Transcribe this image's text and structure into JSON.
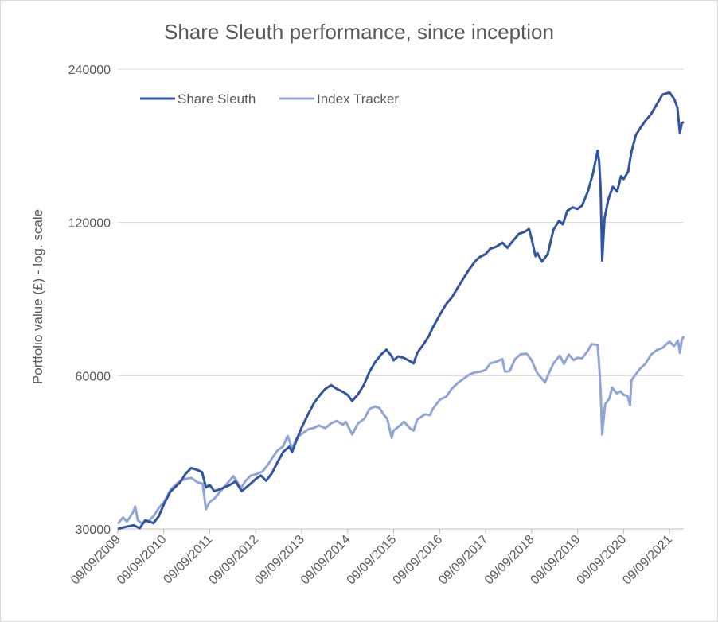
{
  "chart_data": {
    "type": "line",
    "title": "Share Sleuth performance, since inception",
    "ylabel": "Portfolio value (£) - log. scale",
    "xlabel": "",
    "y_scale": "log",
    "ylim": [
      30000,
      240000
    ],
    "y_ticks": [
      30000,
      60000,
      120000,
      240000
    ],
    "y_tick_labels": [
      "30000",
      "60000",
      "120000",
      "240000"
    ],
    "x_range": [
      "2009-09-09",
      "2021-12-31"
    ],
    "x_ticks": [
      "2009-09-09",
      "2010-09-09",
      "2011-09-09",
      "2012-09-09",
      "2013-09-09",
      "2014-09-09",
      "2015-09-09",
      "2016-09-09",
      "2017-09-09",
      "2018-09-09",
      "2019-09-09",
      "2020-09-09",
      "2021-09-09"
    ],
    "x_tick_labels": [
      "09/09/2009",
      "09/09/2010",
      "09/09/2011",
      "09/09/2012",
      "09/09/2013",
      "09/09/2014",
      "09/09/2015",
      "09/09/2016",
      "09/09/2017",
      "09/09/2018",
      "09/09/2019",
      "09/09/2020",
      "09/09/2021"
    ],
    "grid": true,
    "legend_position": "top-left",
    "series": [
      {
        "name": "Share Sleuth",
        "color": "#2f55a4",
        "points": [
          [
            "2009-09-09",
            30000
          ],
          [
            "2009-11-15",
            30300
          ],
          [
            "2010-01-15",
            30500
          ],
          [
            "2010-03-01",
            30100
          ],
          [
            "2010-04-15",
            31200
          ],
          [
            "2010-06-20",
            30800
          ],
          [
            "2010-08-01",
            31800
          ],
          [
            "2010-09-09",
            33500
          ],
          [
            "2010-11-01",
            35500
          ],
          [
            "2011-01-15",
            37000
          ],
          [
            "2011-03-01",
            38500
          ],
          [
            "2011-04-15",
            39500
          ],
          [
            "2011-06-01",
            39200
          ],
          [
            "2011-07-10",
            38800
          ],
          [
            "2011-08-10",
            36200
          ],
          [
            "2011-09-09",
            36600
          ],
          [
            "2011-10-15",
            35600
          ],
          [
            "2011-12-01",
            35900
          ],
          [
            "2012-02-15",
            36600
          ],
          [
            "2012-04-01",
            37200
          ],
          [
            "2012-05-20",
            35600
          ],
          [
            "2012-07-01",
            36300
          ],
          [
            "2012-09-09",
            37600
          ],
          [
            "2012-10-20",
            38200
          ],
          [
            "2012-12-01",
            37300
          ],
          [
            "2013-01-15",
            38600
          ],
          [
            "2013-03-01",
            40600
          ],
          [
            "2013-04-15",
            42500
          ],
          [
            "2013-06-01",
            43500
          ],
          [
            "2013-06-25",
            42500
          ],
          [
            "2013-08-01",
            45000
          ],
          [
            "2013-09-09",
            47500
          ],
          [
            "2013-11-01",
            50500
          ],
          [
            "2013-12-15",
            53000
          ],
          [
            "2014-02-01",
            55000
          ],
          [
            "2014-03-15",
            56500
          ],
          [
            "2014-05-01",
            57500
          ],
          [
            "2014-06-15",
            56500
          ],
          [
            "2014-08-01",
            55800
          ],
          [
            "2014-09-09",
            55000
          ],
          [
            "2014-10-15",
            53500
          ],
          [
            "2014-12-01",
            55200
          ],
          [
            "2015-01-15",
            57500
          ],
          [
            "2015-03-01",
            61000
          ],
          [
            "2015-04-15",
            63800
          ],
          [
            "2015-06-01",
            66000
          ],
          [
            "2015-07-15",
            67500
          ],
          [
            "2015-08-25",
            65500
          ],
          [
            "2015-09-09",
            64300
          ],
          [
            "2015-10-15",
            65500
          ],
          [
            "2015-12-01",
            65000
          ],
          [
            "2016-01-20",
            64000
          ],
          [
            "2016-02-15",
            63400
          ],
          [
            "2016-03-15",
            66500
          ],
          [
            "2016-05-01",
            69000
          ],
          [
            "2016-06-15",
            71800
          ],
          [
            "2016-07-15",
            74500
          ],
          [
            "2016-09-09",
            79000
          ],
          [
            "2016-11-01",
            83000
          ],
          [
            "2016-12-15",
            85500
          ],
          [
            "2017-02-01",
            89500
          ],
          [
            "2017-03-15",
            93000
          ],
          [
            "2017-05-01",
            97000
          ],
          [
            "2017-06-15",
            100500
          ],
          [
            "2017-07-20",
            102500
          ],
          [
            "2017-09-09",
            104000
          ],
          [
            "2017-10-15",
            106500
          ],
          [
            "2017-12-01",
            107500
          ],
          [
            "2018-01-20",
            109500
          ],
          [
            "2018-03-01",
            107000
          ],
          [
            "2018-04-15",
            110500
          ],
          [
            "2018-06-01",
            114000
          ],
          [
            "2018-07-15",
            115000
          ],
          [
            "2018-08-20",
            116500
          ],
          [
            "2018-09-09",
            111500
          ],
          [
            "2018-10-10",
            103000
          ],
          [
            "2018-10-25",
            104500
          ],
          [
            "2018-12-01",
            100500
          ],
          [
            "2019-01-15",
            104000
          ],
          [
            "2019-03-01",
            116000
          ],
          [
            "2019-04-15",
            121000
          ],
          [
            "2019-05-15",
            119000
          ],
          [
            "2019-06-20",
            126500
          ],
          [
            "2019-08-01",
            128500
          ],
          [
            "2019-09-09",
            127500
          ],
          [
            "2019-10-15",
            129500
          ],
          [
            "2019-11-30",
            138000
          ],
          [
            "2020-01-10",
            150000
          ],
          [
            "2020-02-15",
            166000
          ],
          [
            "2020-02-28",
            158000
          ],
          [
            "2020-03-10",
            140000
          ],
          [
            "2020-03-23",
            101000
          ],
          [
            "2020-04-10",
            122000
          ],
          [
            "2020-05-10",
            133000
          ],
          [
            "2020-06-15",
            141000
          ],
          [
            "2020-07-20",
            138000
          ],
          [
            "2020-08-20",
            148000
          ],
          [
            "2020-09-09",
            146000
          ],
          [
            "2020-10-15",
            151000
          ],
          [
            "2020-11-10",
            165000
          ],
          [
            "2020-12-15",
            178000
          ],
          [
            "2021-01-20",
            184000
          ],
          [
            "2021-03-01",
            190000
          ],
          [
            "2021-04-15",
            196000
          ],
          [
            "2021-06-01",
            205000
          ],
          [
            "2021-07-15",
            214000
          ],
          [
            "2021-09-09",
            216000
          ],
          [
            "2021-10-15",
            210000
          ],
          [
            "2021-11-10",
            202000
          ],
          [
            "2021-11-30",
            180000
          ],
          [
            "2021-12-15",
            188000
          ],
          [
            "2021-12-31",
            189000
          ]
        ]
      },
      {
        "name": "Index Tracker",
        "color": "#8fa4d9",
        "points": [
          [
            "2009-09-09",
            30700
          ],
          [
            "2009-10-20",
            31600
          ],
          [
            "2009-11-20",
            31000
          ],
          [
            "2010-01-10",
            32400
          ],
          [
            "2010-01-25",
            33200
          ],
          [
            "2010-02-15",
            31200
          ],
          [
            "2010-03-15",
            30800
          ],
          [
            "2010-05-15",
            31100
          ],
          [
            "2010-06-25",
            31900
          ],
          [
            "2010-08-01",
            33000
          ],
          [
            "2010-09-09",
            33800
          ],
          [
            "2010-11-01",
            35800
          ],
          [
            "2010-12-15",
            36700
          ],
          [
            "2011-01-20",
            37300
          ],
          [
            "2011-03-01",
            37600
          ],
          [
            "2011-04-15",
            37800
          ],
          [
            "2011-06-01",
            37100
          ],
          [
            "2011-07-15",
            36800
          ],
          [
            "2011-08-10",
            32800
          ],
          [
            "2011-09-09",
            33900
          ],
          [
            "2011-10-15",
            34400
          ],
          [
            "2011-12-01",
            35500
          ],
          [
            "2012-01-20",
            36700
          ],
          [
            "2012-03-15",
            38100
          ],
          [
            "2012-05-15",
            36100
          ],
          [
            "2012-06-20",
            37300
          ],
          [
            "2012-08-01",
            38200
          ],
          [
            "2012-09-09",
            38400
          ],
          [
            "2012-11-01",
            38900
          ],
          [
            "2012-12-15",
            40100
          ],
          [
            "2013-01-25",
            41600
          ],
          [
            "2013-03-01",
            42800
          ],
          [
            "2013-04-15",
            43600
          ],
          [
            "2013-05-20",
            45700
          ],
          [
            "2013-06-25",
            43200
          ],
          [
            "2013-08-01",
            45300
          ],
          [
            "2013-09-09",
            46100
          ],
          [
            "2013-11-01",
            47100
          ],
          [
            "2013-12-15",
            47400
          ],
          [
            "2014-01-25",
            47900
          ],
          [
            "2014-03-15",
            47300
          ],
          [
            "2014-05-01",
            48400
          ],
          [
            "2014-06-15",
            48900
          ],
          [
            "2014-08-01",
            48100
          ],
          [
            "2014-08-25",
            48700
          ],
          [
            "2014-09-09",
            47900
          ],
          [
            "2014-10-15",
            46000
          ],
          [
            "2014-12-01",
            48400
          ],
          [
            "2015-01-20",
            49400
          ],
          [
            "2015-03-01",
            51600
          ],
          [
            "2015-04-15",
            52200
          ],
          [
            "2015-05-20",
            51800
          ],
          [
            "2015-06-25",
            50200
          ],
          [
            "2015-07-20",
            49400
          ],
          [
            "2015-08-25",
            45300
          ],
          [
            "2015-09-09",
            46800
          ],
          [
            "2015-10-15",
            47600
          ],
          [
            "2015-12-01",
            48700
          ],
          [
            "2016-01-20",
            47200
          ],
          [
            "2016-02-15",
            46800
          ],
          [
            "2016-03-15",
            49200
          ],
          [
            "2016-05-15",
            50400
          ],
          [
            "2016-06-24",
            50200
          ],
          [
            "2016-07-15",
            51600
          ],
          [
            "2016-09-09",
            53800
          ],
          [
            "2016-11-01",
            54600
          ],
          [
            "2016-12-15",
            56600
          ],
          [
            "2017-02-01",
            58100
          ],
          [
            "2017-03-15",
            59100
          ],
          [
            "2017-05-01",
            60300
          ],
          [
            "2017-06-15",
            60900
          ],
          [
            "2017-08-01",
            61100
          ],
          [
            "2017-09-09",
            61600
          ],
          [
            "2017-10-15",
            63400
          ],
          [
            "2017-12-01",
            63900
          ],
          [
            "2018-01-20",
            64700
          ],
          [
            "2018-02-10",
            61100
          ],
          [
            "2018-03-20",
            61300
          ],
          [
            "2018-05-01",
            64700
          ],
          [
            "2018-06-15",
            66100
          ],
          [
            "2018-08-01",
            66300
          ],
          [
            "2018-09-09",
            64400
          ],
          [
            "2018-10-20",
            60900
          ],
          [
            "2018-12-24",
            58200
          ],
          [
            "2019-01-25",
            60700
          ],
          [
            "2019-03-01",
            63400
          ],
          [
            "2019-04-20",
            65700
          ],
          [
            "2019-05-25",
            63300
          ],
          [
            "2019-07-01",
            66000
          ],
          [
            "2019-08-10",
            64400
          ],
          [
            "2019-09-09",
            65100
          ],
          [
            "2019-10-15",
            64900
          ],
          [
            "2019-11-25",
            66900
          ],
          [
            "2019-12-31",
            69200
          ],
          [
            "2020-02-15",
            69000
          ],
          [
            "2020-02-28",
            63000
          ],
          [
            "2020-03-10",
            56000
          ],
          [
            "2020-03-23",
            46000
          ],
          [
            "2020-04-15",
            52700
          ],
          [
            "2020-05-20",
            54200
          ],
          [
            "2020-06-10",
            56900
          ],
          [
            "2020-07-15",
            55400
          ],
          [
            "2020-08-15",
            55900
          ],
          [
            "2020-09-09",
            55000
          ],
          [
            "2020-10-10",
            54800
          ],
          [
            "2020-10-30",
            52500
          ],
          [
            "2020-11-10",
            58700
          ],
          [
            "2020-12-15",
            60400
          ],
          [
            "2021-01-20",
            62000
          ],
          [
            "2021-02-28",
            63300
          ],
          [
            "2021-04-15",
            66000
          ],
          [
            "2021-06-01",
            67400
          ],
          [
            "2021-07-15",
            68000
          ],
          [
            "2021-08-15",
            69200
          ],
          [
            "2021-09-09",
            70000
          ],
          [
            "2021-10-15",
            68600
          ],
          [
            "2021-11-15",
            70300
          ],
          [
            "2021-11-30",
            66500
          ],
          [
            "2021-12-15",
            70500
          ],
          [
            "2021-12-31",
            71700
          ]
        ]
      }
    ]
  }
}
